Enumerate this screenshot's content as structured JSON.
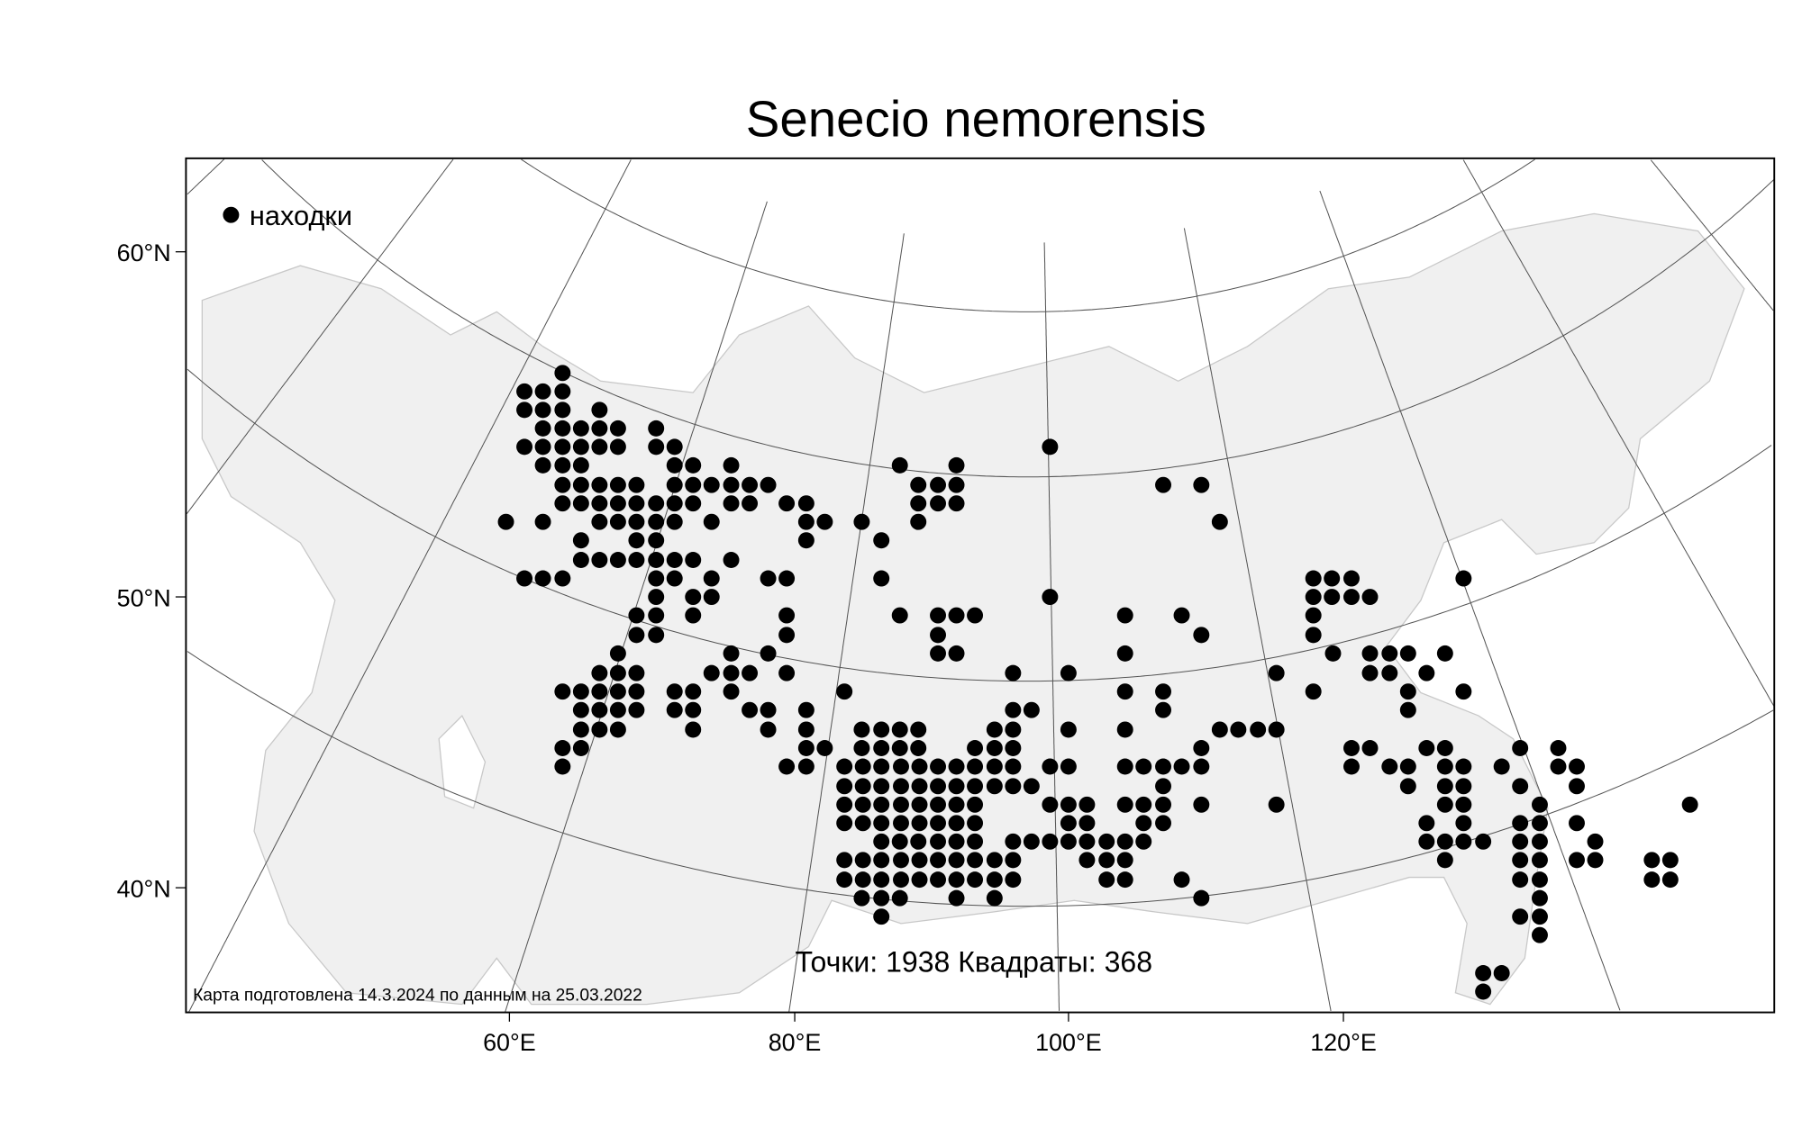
{
  "title": "Senecio nemorensis",
  "legend": {
    "marker": "filled-circle",
    "label": "находки"
  },
  "axes": {
    "y_ticks": [
      "60°N",
      "50°N",
      "40°N"
    ],
    "x_ticks": [
      "60°E",
      "80°E",
      "100°E",
      "120°E"
    ]
  },
  "stats": "Точки: 1938 Квадраты: 368",
  "footer": "Карта подготовлена 14.3.2024 по данным на 25.03.2022",
  "colors": {
    "land": "#f0f0f0",
    "coast": "#c8c8c8",
    "grid": "#555555",
    "marker": "#000000"
  }
}
